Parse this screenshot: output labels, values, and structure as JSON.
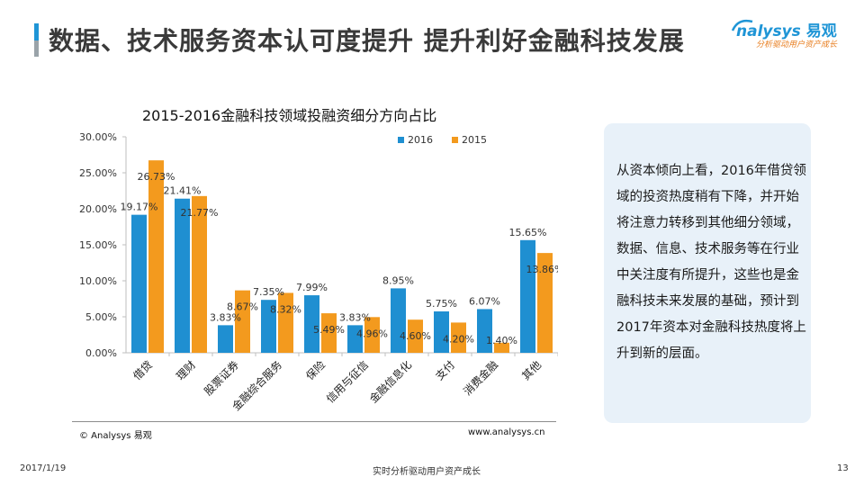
{
  "page": {
    "title": "数据、技术服务资本认可度提升  提升利好金融科技发展",
    "logo_text": "nalysys",
    "logo_cn": "易观",
    "logo_slogan": "分析驱动用户资产成长"
  },
  "chart_data": {
    "type": "bar",
    "title": "2015-2016金融科技领域投融资细分方向占比",
    "categories": [
      "借贷",
      "理财",
      "股票证券",
      "金融综合服务",
      "保险",
      "信用与征信",
      "金融信息化",
      "支付",
      "消费金融",
      "其他"
    ],
    "series": [
      {
        "name": "2016",
        "color": "#1f8fd1",
        "values": [
          19.17,
          21.41,
          3.83,
          7.35,
          7.99,
          3.83,
          8.95,
          5.75,
          6.07,
          15.65
        ]
      },
      {
        "name": "2015",
        "color": "#f39a1e",
        "values": [
          26.73,
          21.77,
          8.67,
          8.32,
          5.49,
          4.96,
          4.6,
          4.2,
          1.4,
          13.86
        ]
      }
    ],
    "y_tick_labels": [
      "0.00%",
      "5.00%",
      "10.00%",
      "15.00%",
      "20.00%",
      "25.00%",
      "30.00%"
    ],
    "ylim": [
      0,
      30
    ],
    "grid": false,
    "legend_position": "top"
  },
  "chart_footer": {
    "copyright": "© Analysys 易观",
    "url": "www.analysys.cn"
  },
  "note": {
    "text": "从资本倾向上看，2016年借贷领域的投资热度稍有下降，并开始将注意力转移到其他细分领域，数据、信息、技术服务等在行业中关注度有所提升，这些也是金融科技未来发展的基础，预计到2017年资本对金融科技热度将上升到新的层面。"
  },
  "footer": {
    "date": "2017/1/19",
    "slogan": "实时分析驱动用户资产成长",
    "page_number": "13"
  }
}
